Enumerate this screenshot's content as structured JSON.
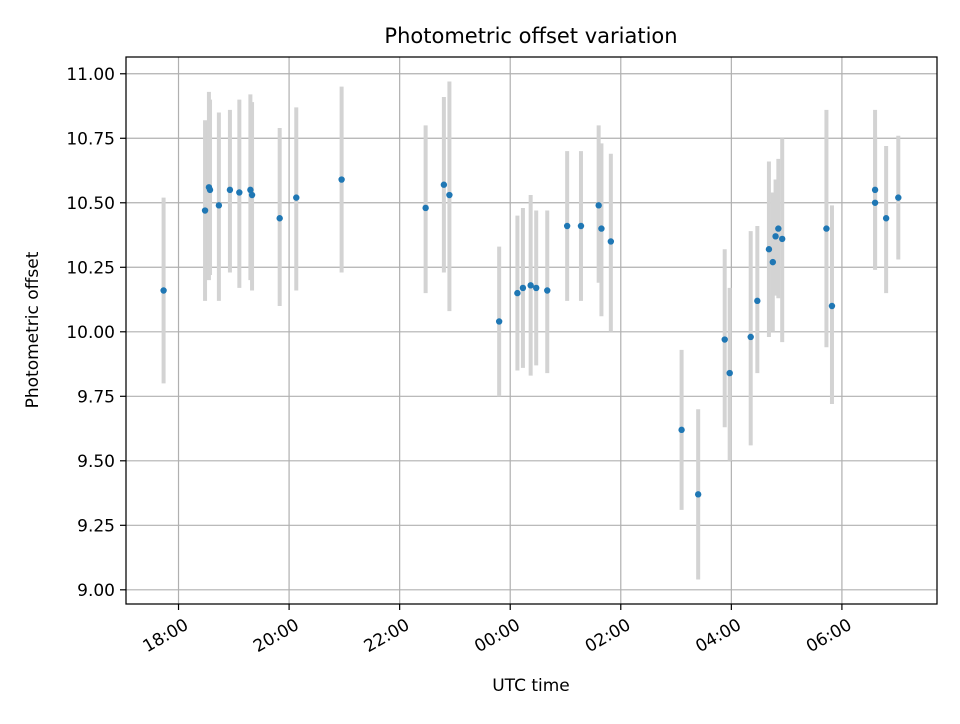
{
  "chart_data": {
    "type": "scatter",
    "title": "Photometric offset variation",
    "xlabel": "UTC time",
    "ylabel": "Photometric offset",
    "x_unit": "hours since 00:00 UTC (negative = previous evening)",
    "xlim": [
      -6.95,
      7.72
    ],
    "ylim": [
      8.945,
      11.065
    ],
    "x_ticks": [
      -6,
      -4,
      -2,
      0,
      2,
      4,
      6
    ],
    "x_tick_labels": [
      "18:00",
      "20:00",
      "22:00",
      "00:00",
      "02:00",
      "04:00",
      "06:00"
    ],
    "y_ticks": [
      9.0,
      9.25,
      9.5,
      9.75,
      10.0,
      10.25,
      10.5,
      10.75,
      11.0
    ],
    "y_tick_labels": [
      "9.00",
      "9.25",
      "9.50",
      "9.75",
      "10.00",
      "10.25",
      "10.50",
      "10.75",
      "11.00"
    ],
    "grid": true,
    "colors": {
      "point": "#1f77b4",
      "errorbar": "#d3d3d3",
      "grid": "#b0b0b0"
    },
    "points": [
      {
        "x": -6.27,
        "y": 10.16,
        "lo": 9.8,
        "hi": 10.52
      },
      {
        "x": -5.52,
        "y": 10.47,
        "lo": 10.12,
        "hi": 10.82
      },
      {
        "x": -5.45,
        "y": 10.56,
        "lo": 10.2,
        "hi": 10.93
      },
      {
        "x": -5.43,
        "y": 10.55,
        "lo": 10.22,
        "hi": 10.9
      },
      {
        "x": -5.27,
        "y": 10.49,
        "lo": 10.12,
        "hi": 10.85
      },
      {
        "x": -5.07,
        "y": 10.55,
        "lo": 10.23,
        "hi": 10.86
      },
      {
        "x": -4.9,
        "y": 10.54,
        "lo": 10.17,
        "hi": 10.9
      },
      {
        "x": -4.7,
        "y": 10.55,
        "lo": 10.2,
        "hi": 10.92
      },
      {
        "x": -4.67,
        "y": 10.53,
        "lo": 10.16,
        "hi": 10.89
      },
      {
        "x": -4.17,
        "y": 10.44,
        "lo": 10.1,
        "hi": 10.79
      },
      {
        "x": -3.87,
        "y": 10.52,
        "lo": 10.16,
        "hi": 10.87
      },
      {
        "x": -3.05,
        "y": 10.59,
        "lo": 10.23,
        "hi": 10.95
      },
      {
        "x": -1.53,
        "y": 10.48,
        "lo": 10.15,
        "hi": 10.8
      },
      {
        "x": -1.2,
        "y": 10.57,
        "lo": 10.23,
        "hi": 10.91
      },
      {
        "x": -1.1,
        "y": 10.53,
        "lo": 10.08,
        "hi": 10.97
      },
      {
        "x": -0.2,
        "y": 10.04,
        "lo": 9.75,
        "hi": 10.33
      },
      {
        "x": 0.13,
        "y": 10.15,
        "lo": 9.85,
        "hi": 10.45
      },
      {
        "x": 0.23,
        "y": 10.17,
        "lo": 9.86,
        "hi": 10.48
      },
      {
        "x": 0.37,
        "y": 10.18,
        "lo": 9.83,
        "hi": 10.53
      },
      {
        "x": 0.47,
        "y": 10.17,
        "lo": 9.87,
        "hi": 10.47
      },
      {
        "x": 0.67,
        "y": 10.16,
        "lo": 9.84,
        "hi": 10.47
      },
      {
        "x": 1.03,
        "y": 10.41,
        "lo": 10.12,
        "hi": 10.7
      },
      {
        "x": 1.28,
        "y": 10.41,
        "lo": 10.12,
        "hi": 10.7
      },
      {
        "x": 1.6,
        "y": 10.49,
        "lo": 10.19,
        "hi": 10.8
      },
      {
        "x": 1.65,
        "y": 10.4,
        "lo": 10.06,
        "hi": 10.73
      },
      {
        "x": 1.82,
        "y": 10.35,
        "lo": 10.0,
        "hi": 10.69
      },
      {
        "x": 3.1,
        "y": 9.62,
        "lo": 9.31,
        "hi": 9.93
      },
      {
        "x": 3.4,
        "y": 9.37,
        "lo": 9.04,
        "hi": 9.7
      },
      {
        "x": 3.88,
        "y": 9.97,
        "lo": 9.63,
        "hi": 10.32
      },
      {
        "x": 3.97,
        "y": 9.84,
        "lo": 9.5,
        "hi": 10.17
      },
      {
        "x": 4.35,
        "y": 9.98,
        "lo": 9.56,
        "hi": 10.39
      },
      {
        "x": 4.47,
        "y": 10.12,
        "lo": 9.84,
        "hi": 10.41
      },
      {
        "x": 4.68,
        "y": 10.32,
        "lo": 9.98,
        "hi": 10.66
      },
      {
        "x": 4.75,
        "y": 10.27,
        "lo": 10.0,
        "hi": 10.54
      },
      {
        "x": 4.8,
        "y": 10.37,
        "lo": 10.14,
        "hi": 10.59
      },
      {
        "x": 4.85,
        "y": 10.4,
        "lo": 10.13,
        "hi": 10.67
      },
      {
        "x": 4.92,
        "y": 10.36,
        "lo": 9.96,
        "hi": 10.75
      },
      {
        "x": 5.72,
        "y": 10.4,
        "lo": 9.94,
        "hi": 10.86
      },
      {
        "x": 5.82,
        "y": 10.1,
        "lo": 9.72,
        "hi": 10.49
      },
      {
        "x": 6.6,
        "y": 10.55,
        "lo": 10.24,
        "hi": 10.86
      },
      {
        "x": 6.6,
        "y": 10.5,
        "lo": 10.25,
        "hi": 10.76
      },
      {
        "x": 6.8,
        "y": 10.44,
        "lo": 10.15,
        "hi": 10.72
      },
      {
        "x": 7.02,
        "y": 10.52,
        "lo": 10.28,
        "hi": 10.76
      }
    ]
  }
}
